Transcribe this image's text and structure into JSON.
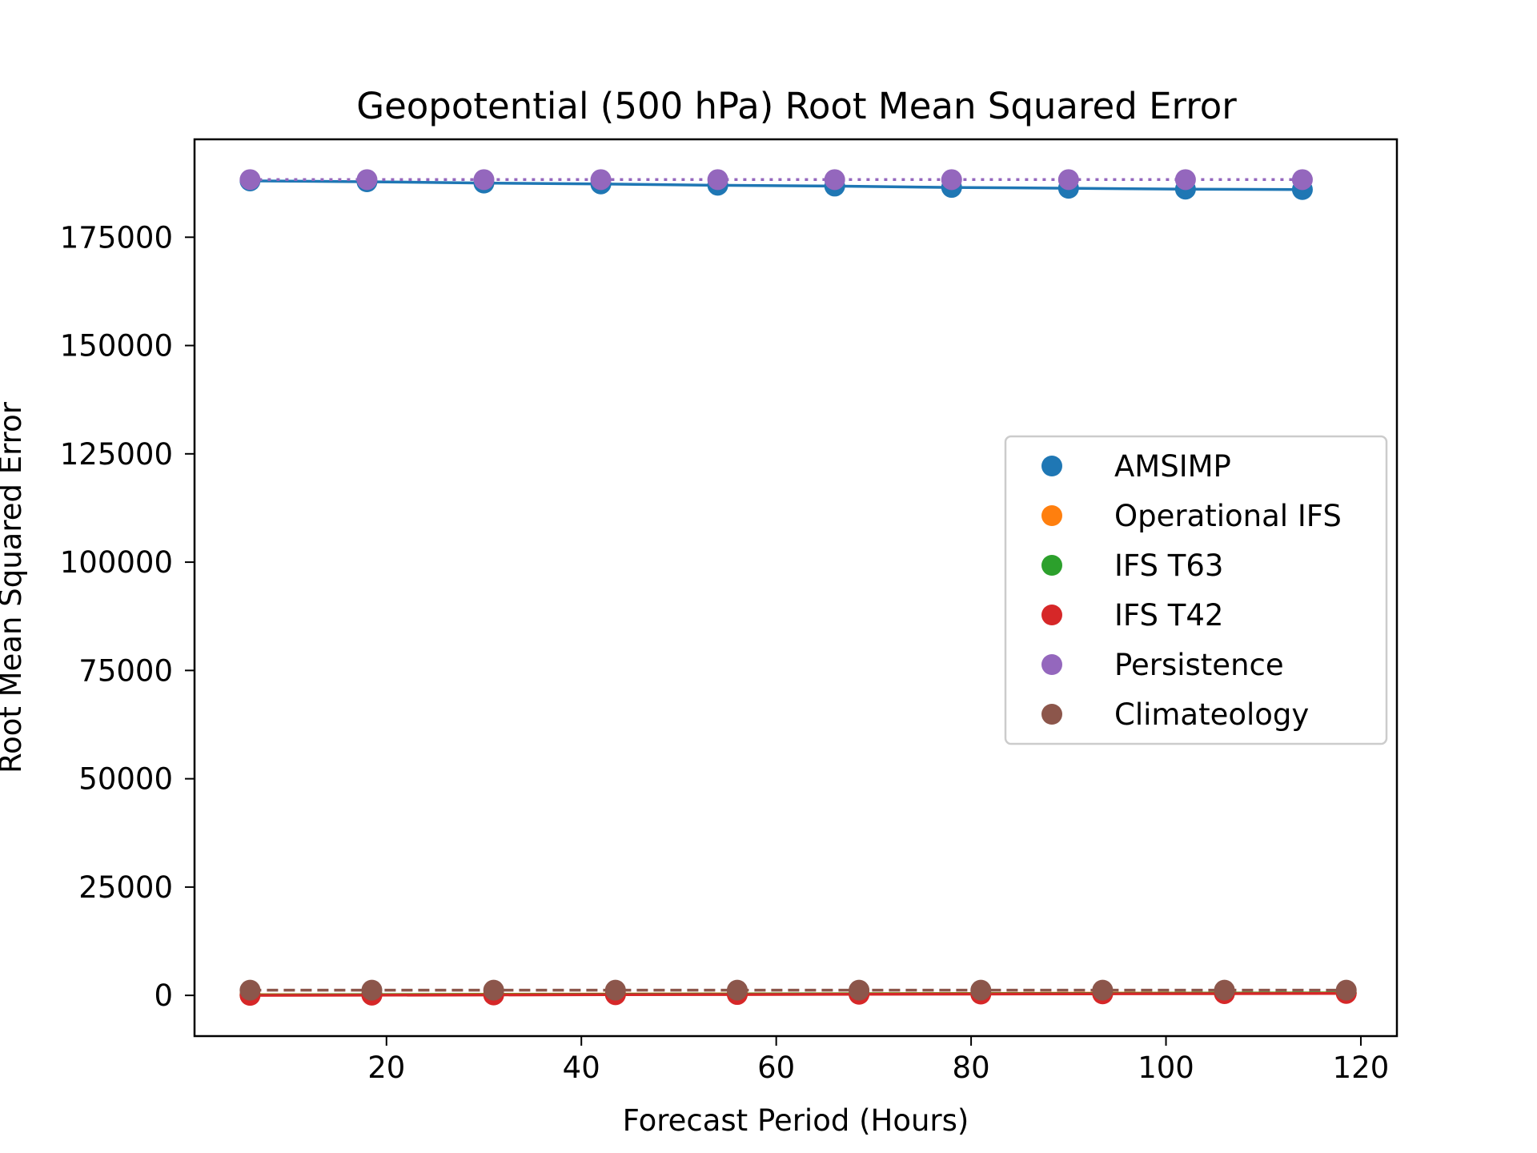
{
  "chart_data": {
    "type": "line",
    "title": "Geopotential (500 hPa) Root Mean Squared Error",
    "xlabel": "Forecast Period (Hours)",
    "ylabel": "Root Mean Squared Error",
    "xlim": [
      0.3,
      123.7
    ],
    "ylim": [
      -9400,
      197600
    ],
    "xticks": [
      20,
      40,
      60,
      80,
      100,
      120
    ],
    "yticks": [
      0,
      25000,
      50000,
      75000,
      100000,
      125000,
      150000,
      175000
    ],
    "grid": false,
    "legend_position": "center-right",
    "series": [
      {
        "name": "AMSIMP",
        "color": "#1f77b4",
        "line_style": "solid",
        "x": [
          6,
          18,
          30,
          42,
          54,
          66,
          78,
          90,
          102,
          114
        ],
        "y": [
          188000,
          187800,
          187500,
          187300,
          187000,
          186800,
          186500,
          186300,
          186100,
          186000
        ]
      },
      {
        "name": "Operational IFS",
        "color": "#ff7f0e",
        "line_style": "solid",
        "x": [
          6,
          18.5,
          31,
          43.5,
          56,
          68.5,
          81,
          93.5,
          106,
          118.5
        ],
        "y": [
          150,
          200,
          250,
          300,
          350,
          400,
          450,
          500,
          550,
          600
        ]
      },
      {
        "name": "IFS T63",
        "color": "#2ca02c",
        "line_style": "solid",
        "x": [
          6,
          18.5,
          31,
          43.5,
          56,
          68.5,
          81,
          93.5,
          106,
          118.5
        ],
        "y": [
          100,
          150,
          200,
          250,
          300,
          350,
          400,
          450,
          500,
          550
        ]
      },
      {
        "name": "IFS T42",
        "color": "#d62728",
        "line_style": "solid",
        "x": [
          6,
          18.5,
          31,
          43.5,
          56,
          68.5,
          81,
          93.5,
          106,
          118.5
        ],
        "y": [
          0,
          50,
          100,
          150,
          200,
          250,
          300,
          350,
          400,
          450
        ]
      },
      {
        "name": "Persistence",
        "color": "#9467bd",
        "line_style": "dotted",
        "x": [
          6,
          18,
          30,
          42,
          54,
          66,
          78,
          90,
          102,
          114
        ],
        "y": [
          188300,
          188300,
          188300,
          188300,
          188300,
          188300,
          188300,
          188300,
          188300,
          188300
        ]
      },
      {
        "name": "Climateology",
        "color": "#8c564b",
        "line_style": "dashed",
        "x": [
          6,
          18.5,
          31,
          43.5,
          56,
          68.5,
          81,
          93.5,
          106,
          118.5
        ],
        "y": [
          1200,
          1200,
          1200,
          1200,
          1200,
          1200,
          1200,
          1200,
          1200,
          1200
        ]
      }
    ]
  }
}
